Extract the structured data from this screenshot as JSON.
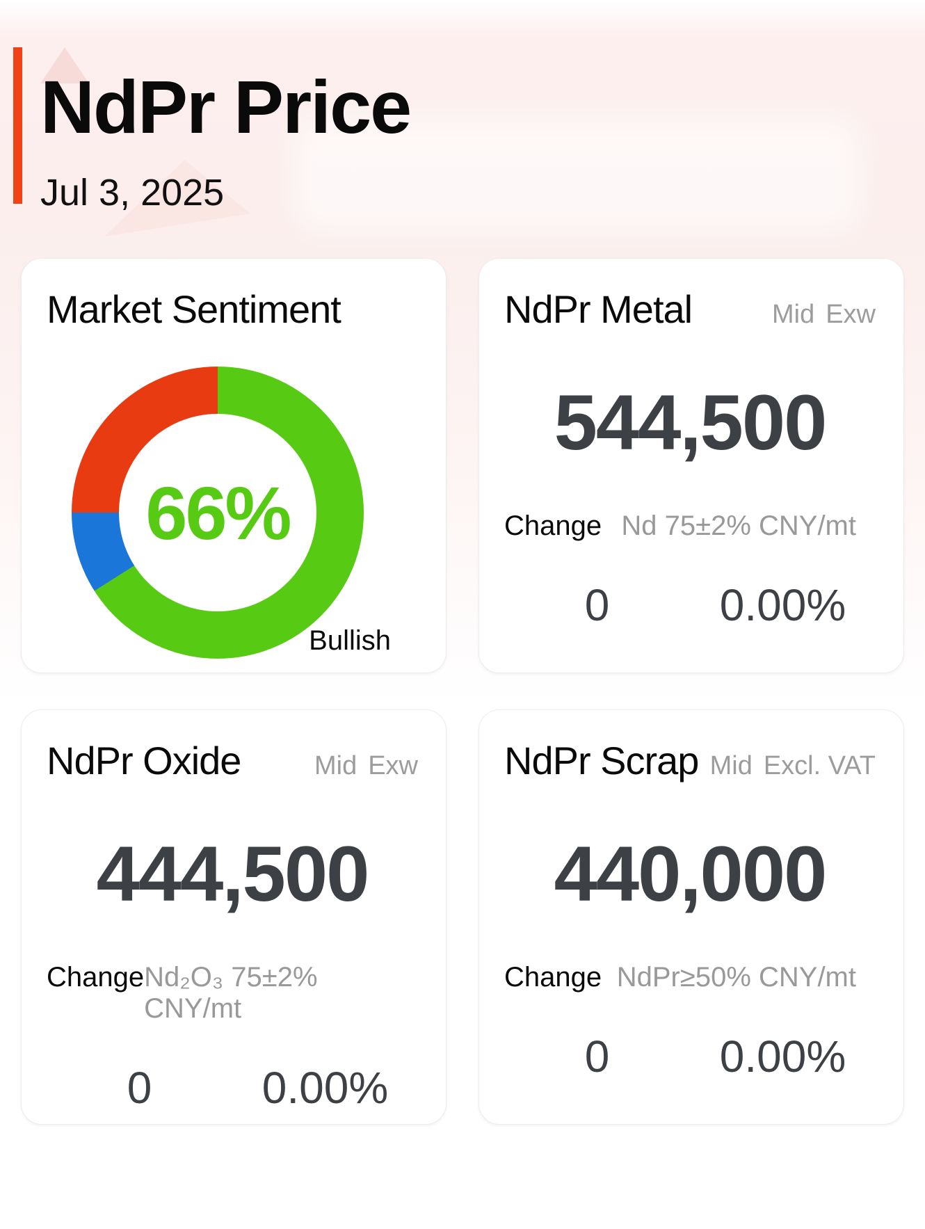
{
  "page": {
    "title": "NdPr Price",
    "date": "Jul 3, 2025"
  },
  "colors": {
    "accent": "#f14116",
    "bullish_green": "#57cb13",
    "neutral_blue": "#1b76d9",
    "bearish_red": "#e93b12",
    "value_dark": "#3d4045",
    "label_gray": "#9c9c9c"
  },
  "chart_data": {
    "type": "pie",
    "variant": "donut",
    "title": "Market Sentiment",
    "center_label": "66%",
    "start_angle_deg": 0,
    "direction": "clockwise",
    "legend": "none",
    "annotation": "Bullish",
    "segments": [
      {
        "label": "Bullish",
        "value": 66,
        "color": "#57cb13"
      },
      {
        "label": "",
        "value": 9,
        "color": "#1b76d9"
      },
      {
        "label": "",
        "value": 25,
        "color": "#e93b12"
      }
    ]
  },
  "sentiment_card": {
    "title": "Market Sentiment",
    "center_label": "66%",
    "annotation": "Bullish"
  },
  "price_cards": [
    {
      "title": "NdPr Metal",
      "price_type": "Mid",
      "terms": "Exw",
      "value": "544,500",
      "change_label": "Change",
      "spec": "Nd 75±2% CNY/mt",
      "change_abs": "0",
      "change_pct": "0.00%"
    },
    {
      "title": "NdPr Oxide",
      "price_type": "Mid",
      "terms": "Exw",
      "value": "444,500",
      "change_label": "Change",
      "spec": "Nd₂O₃ 75±2% CNY/mt",
      "change_abs": "0",
      "change_pct": "0.00%"
    },
    {
      "title": "NdPr Scrap",
      "price_type": "Mid",
      "terms": "Excl. VAT",
      "value": "440,000",
      "change_label": "Change",
      "spec": "NdPr≥50% CNY/mt",
      "change_abs": "0",
      "change_pct": "0.00%"
    }
  ]
}
